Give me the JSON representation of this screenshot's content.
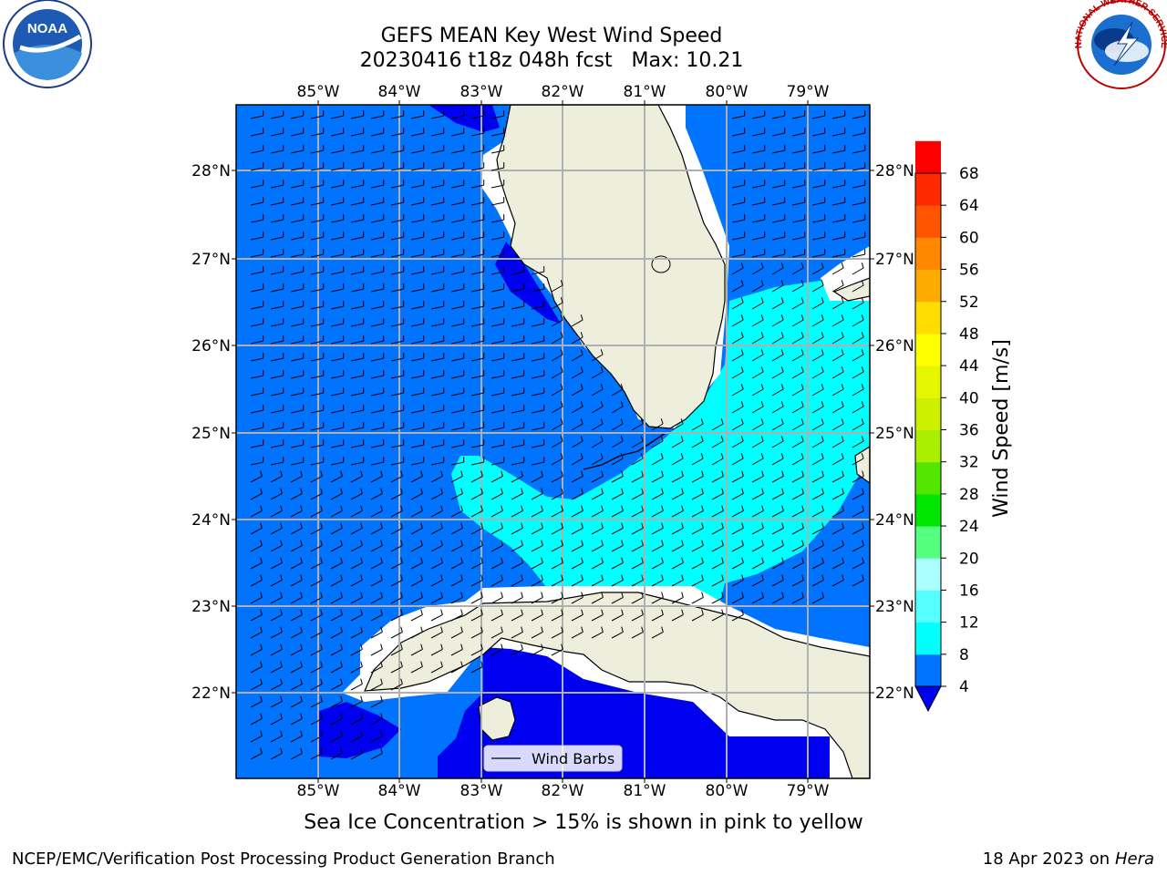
{
  "header": {
    "title_line1": "GEFS MEAN Key West Wind Speed",
    "title_line2": "20230416 t18z 048h fcst   Max: 10.21"
  },
  "logos": {
    "left": {
      "icon": "noaa-logo-icon",
      "text": "NOAA"
    },
    "right": {
      "icon": "nws-logo-icon",
      "text": "NATIONAL WEATHER SERVICE"
    }
  },
  "map": {
    "lon_labels": [
      "85°W",
      "84°W",
      "83°W",
      "82°W",
      "81°W",
      "80°W",
      "79°W"
    ],
    "lat_labels": [
      "28°N",
      "27°N",
      "26°N",
      "25°N",
      "24°N",
      "23°N",
      "22°N"
    ],
    "legend_label": "Wind Barbs",
    "colors": {
      "land": "#eeeedd",
      "bin_4_8": "#0073ff",
      "bin_8_12": "#00ffff",
      "below_4": "#0000f0",
      "gridlines": "#b0b0b0"
    }
  },
  "colorbar": {
    "label": "Wind Speed [m/s]",
    "ticks": [
      "4",
      "8",
      "12",
      "16",
      "20",
      "24",
      "28",
      "32",
      "36",
      "40",
      "44",
      "48",
      "52",
      "56",
      "60",
      "64",
      "68"
    ],
    "colors": [
      "#0073ff",
      "#00ffff",
      "#55ffff",
      "#aaffff",
      "#55ff7f",
      "#00e600",
      "#55e600",
      "#aaee00",
      "#ccf000",
      "#e6f500",
      "#ffff00",
      "#ffdd00",
      "#ffaa00",
      "#ff8800",
      "#ff5500",
      "#ff2a00",
      "#ff0000"
    ],
    "extend_below_color": "#0000f0"
  },
  "footer": {
    "caption": "Sea Ice Concentration > 15% is shown in pink to yellow",
    "left": "NCEP/EMC/Verification Post Processing Product Generation Branch",
    "right_prefix": "18 Apr 2023 on ",
    "right_host": "Hera"
  }
}
